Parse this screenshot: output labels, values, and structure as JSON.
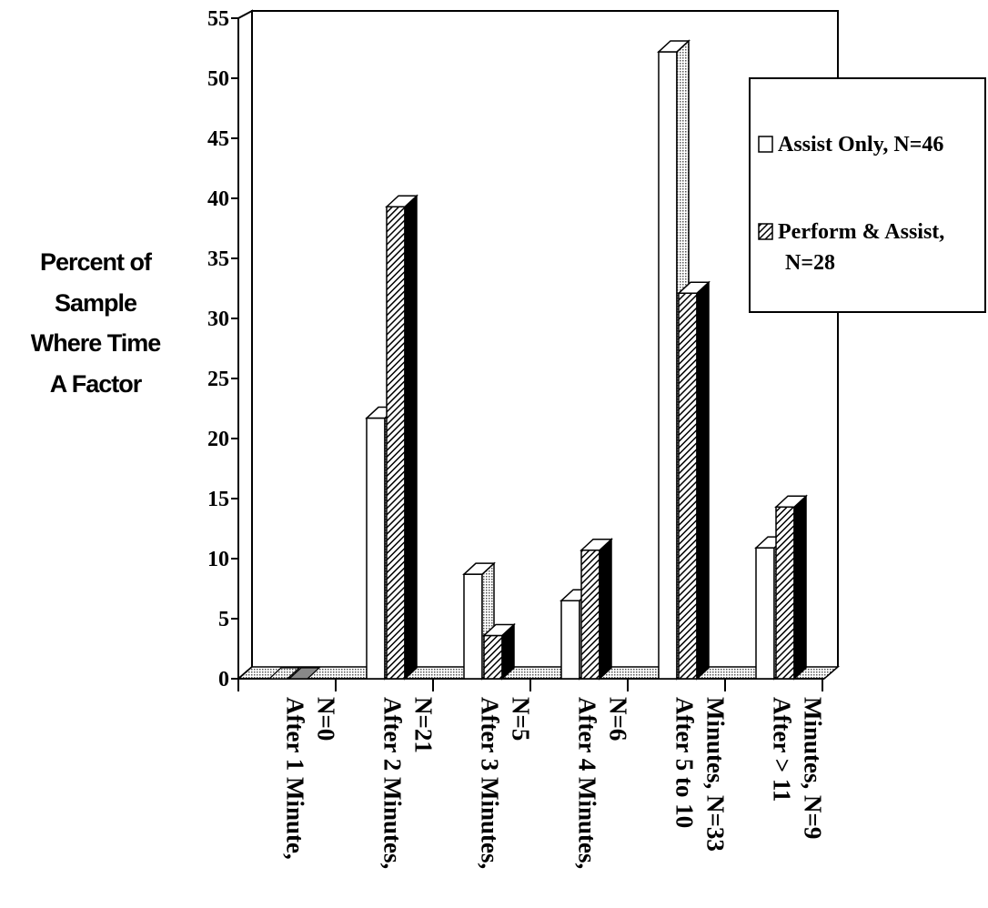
{
  "chart_data": {
    "type": "bar",
    "ylabel": [
      "Percent of",
      "Sample",
      "Where Time",
      "A Factor"
    ],
    "ylim": [
      0,
      55
    ],
    "yticks": [
      "0",
      "5",
      "10",
      "15",
      "20",
      "25",
      "30",
      "35",
      "40",
      "45",
      "50",
      "55"
    ],
    "categories": [
      [
        "After 1 Minute,",
        "N=0"
      ],
      [
        "After 2 Minutes,",
        "N=21"
      ],
      [
        "After 3 Minutes,",
        "N=5"
      ],
      [
        "After 4 Minutes,",
        "N=6"
      ],
      [
        "After 5 to 10",
        "Minutes, N=33"
      ],
      [
        "After > 11",
        "Minutes, N=9"
      ]
    ],
    "series": [
      {
        "name": "Assist Only, N=46",
        "values": [
          0,
          21.7,
          8.7,
          6.5,
          52.2,
          10.9
        ]
      },
      {
        "name": "Perform & Assist, N=28",
        "values": [
          0,
          39.3,
          3.6,
          10.7,
          32.1,
          14.3
        ]
      }
    ],
    "legend": {
      "placement": "top-right",
      "lines": [
        [
          "Assist Only, N=46"
        ],
        [
          "Perform & Assist,",
          "N=28"
        ]
      ]
    },
    "grid": false
  }
}
